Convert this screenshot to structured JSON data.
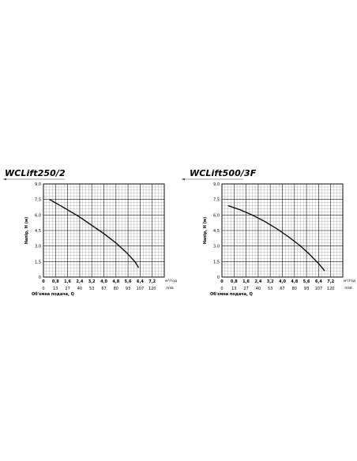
{
  "chart_data": [
    {
      "type": "line",
      "title": "WCLift250/2",
      "ylabel": "Напір, H (м)",
      "xlabel": "Об'ємна подача, Q",
      "ylim": [
        0,
        9.0
      ],
      "xlim_m3h": [
        0,
        8.0
      ],
      "y_ticks": [
        "0",
        "1,5",
        "3,0",
        "4,5",
        "6,0",
        "7,5",
        "9,0"
      ],
      "x_ticks_m3h": [
        "0",
        "0,8",
        "1,6",
        "2,4",
        "3,2",
        "4,0",
        "4,8",
        "5,6",
        "6,4",
        "7,2"
      ],
      "x_unit_m3h": "м³/год",
      "x_ticks_lmin": [
        "0",
        "13",
        "27",
        "40",
        "53",
        "67",
        "80",
        "93",
        "107",
        "120"
      ],
      "x_unit_lmin": "л/хв",
      "series": [
        {
          "x": [
            0.4,
            1.0,
            1.6,
            2.4,
            3.2,
            4.0,
            4.8,
            5.4,
            5.8,
            6.1,
            6.3
          ],
          "y": [
            7.5,
            7.0,
            6.5,
            5.8,
            5.0,
            4.2,
            3.3,
            2.5,
            1.9,
            1.4,
            0.9
          ]
        }
      ]
    },
    {
      "type": "line",
      "title": "WCLift500/3F",
      "ylabel": "Напір, H (м)",
      "xlabel": "Об'ємна подача, Q",
      "ylim": [
        0,
        9.0
      ],
      "xlim_m3h": [
        0,
        8.0
      ],
      "y_ticks": [
        "0",
        "1,5",
        "3,0",
        "4,5",
        "6,0",
        "7,5",
        "9,0"
      ],
      "x_ticks_m3h": [
        "0",
        "0,8",
        "1,6",
        "2,4",
        "3,2",
        "4,0",
        "4,8",
        "5,6",
        "6,4",
        "7,2"
      ],
      "x_unit_m3h": "м³/год",
      "x_ticks_lmin": [
        "0",
        "13",
        "27",
        "40",
        "53",
        "67",
        "80",
        "93",
        "107",
        "120"
      ],
      "x_unit_lmin": "л/хв",
      "series": [
        {
          "x": [
            0.4,
            1.2,
            2.0,
            2.8,
            3.6,
            4.4,
            5.2,
            5.8,
            6.4,
            6.8
          ],
          "y": [
            6.9,
            6.5,
            6.0,
            5.4,
            4.7,
            3.9,
            3.0,
            2.2,
            1.3,
            0.6
          ]
        }
      ]
    }
  ]
}
